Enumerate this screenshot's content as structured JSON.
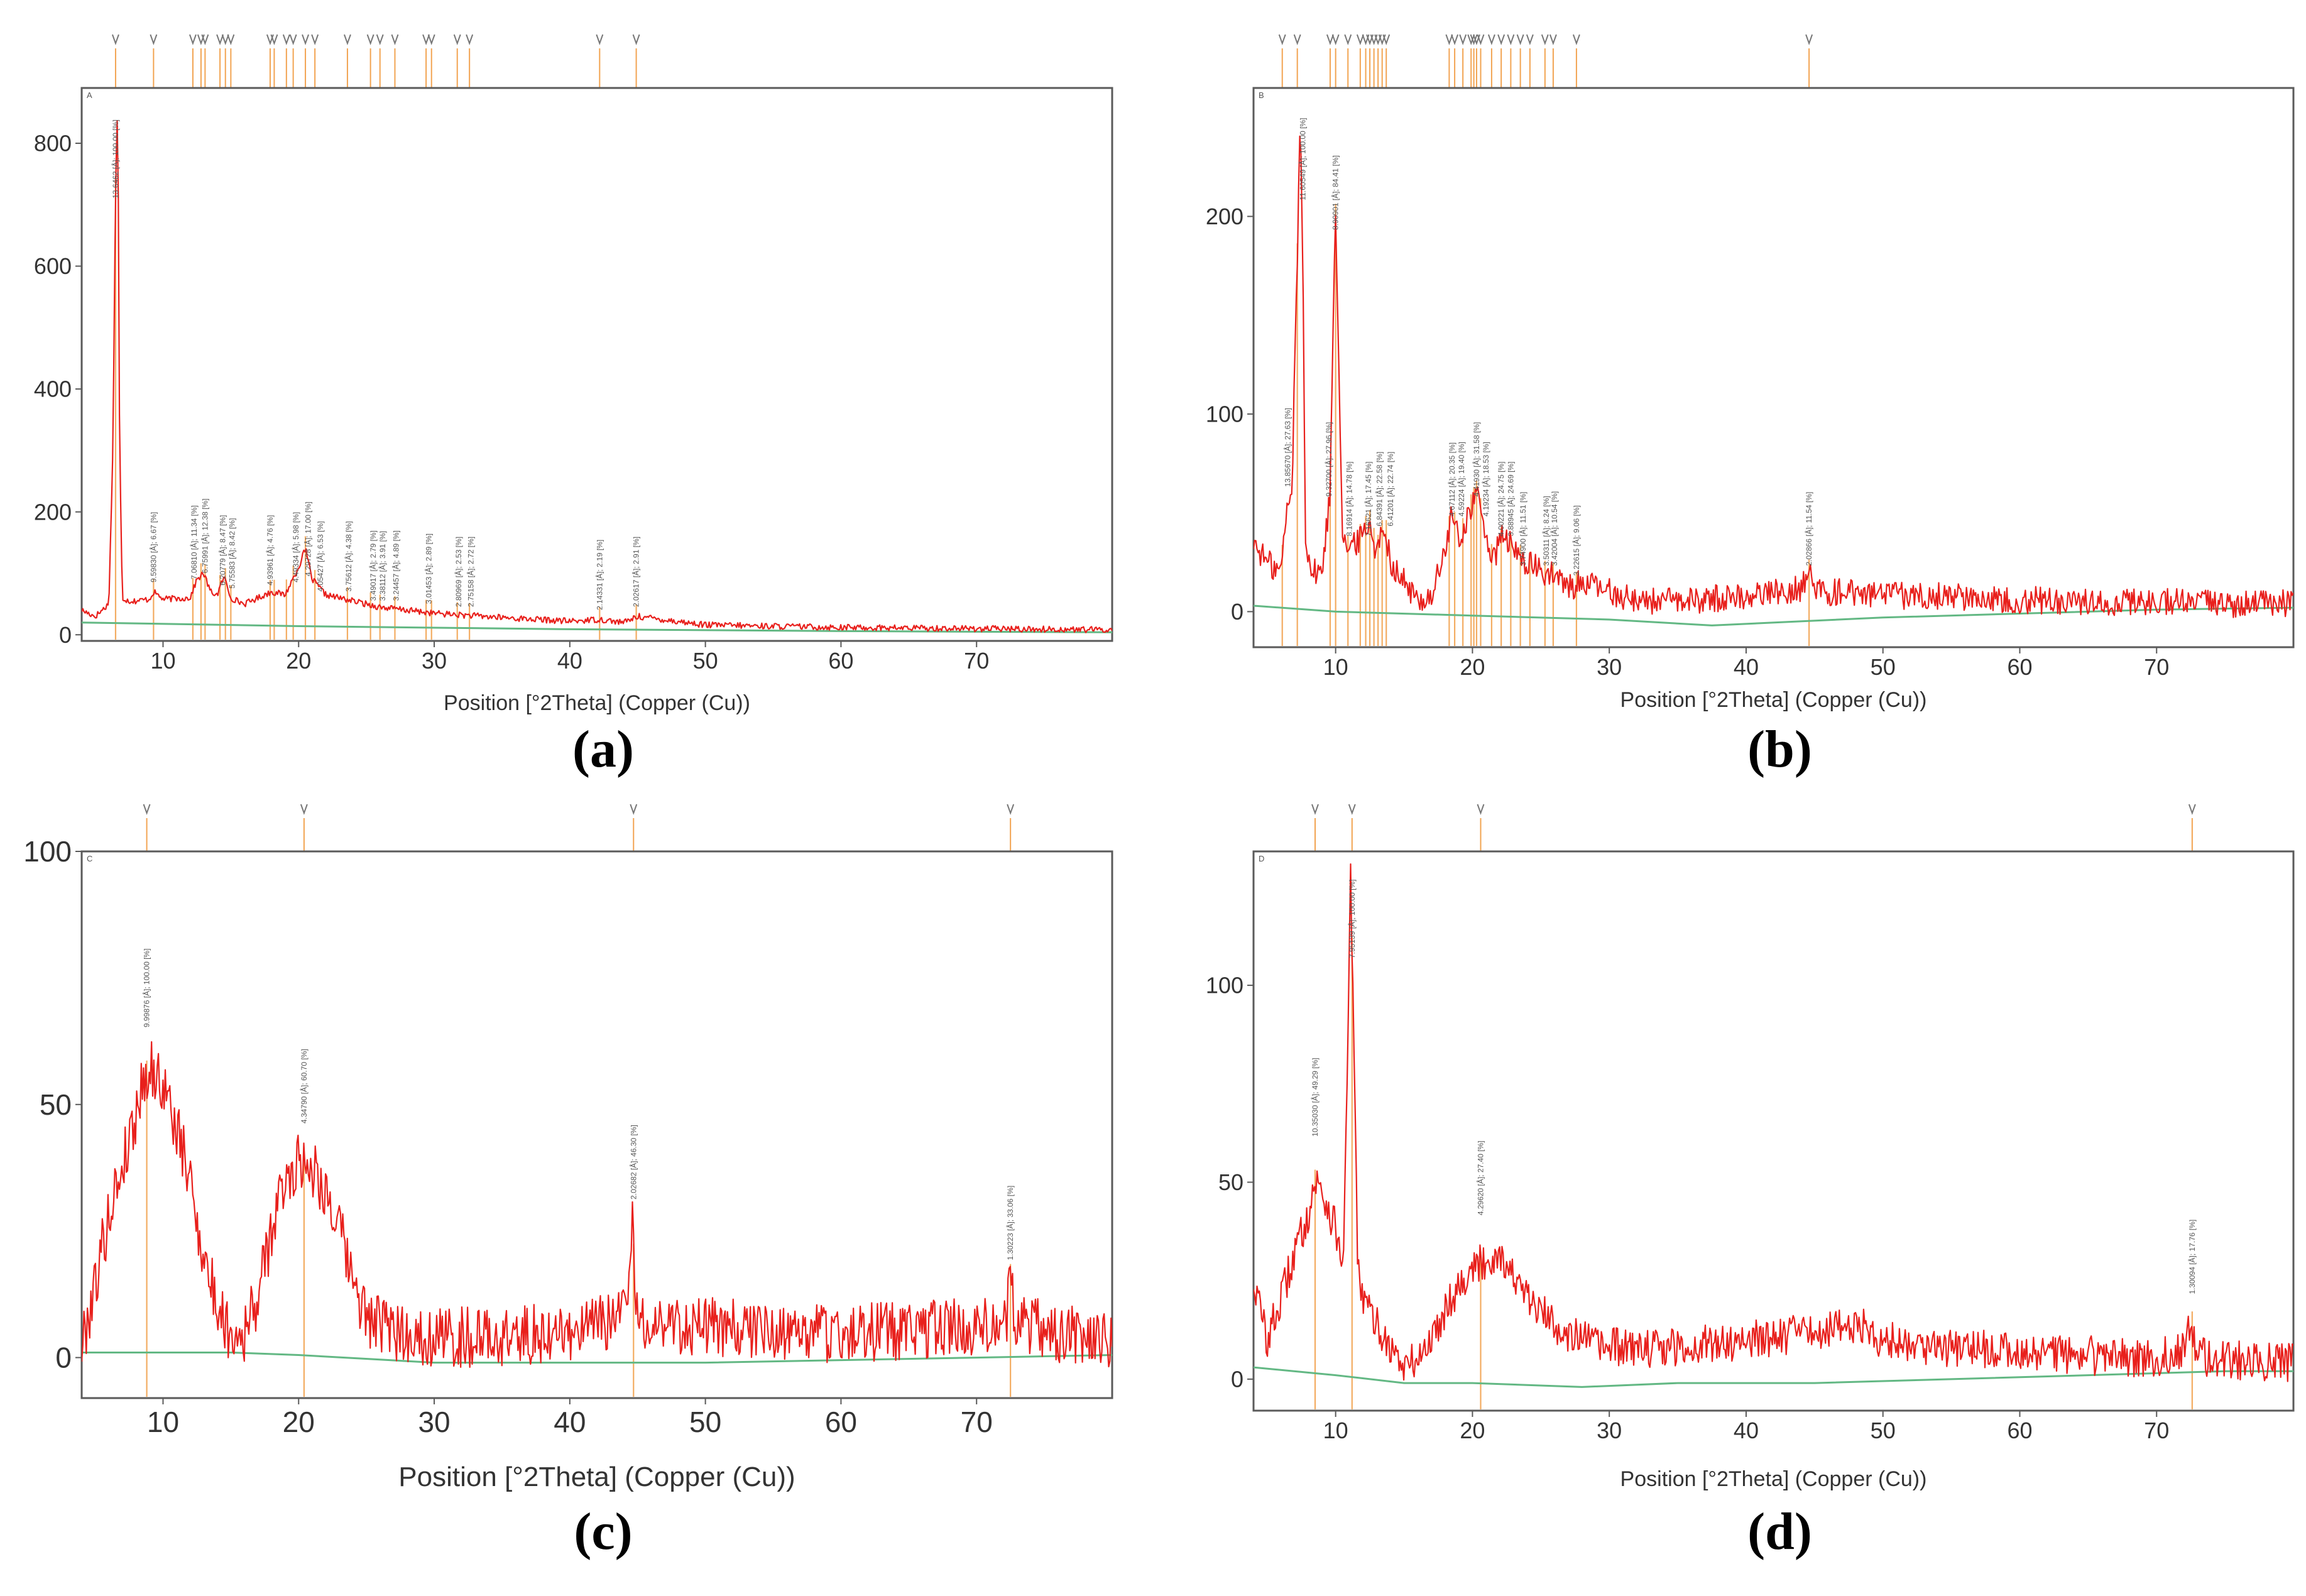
{
  "colors": {
    "pattern": "#e8201c",
    "background_line": "#63b884",
    "peak_marker": "#f2a452",
    "frame": "#5a5a5a",
    "marker_glyph": "#777777"
  },
  "chart_data": [
    {
      "id": "a",
      "type": "line",
      "panel_label": "(a)",
      "letter": "A",
      "xlabel": "Position [°2Theta] (Copper (Cu))",
      "ylabel": "",
      "xlim": [
        4,
        80
      ],
      "ylim": [
        -10,
        890
      ],
      "xticks": [
        "10",
        "20",
        "30",
        "40",
        "50",
        "60",
        "70"
      ],
      "xtick_values": [
        10,
        20,
        30,
        40,
        50,
        60,
        70
      ],
      "yticks": [
        "0",
        "200",
        "400",
        "600",
        "800"
      ],
      "ytick_values": [
        0,
        200,
        400,
        600,
        800
      ],
      "noise": 5,
      "series": [
        {
          "name": "background",
          "x": [
            4,
            20,
            40,
            60,
            80
          ],
          "y": [
            20,
            14,
            9,
            6,
            4
          ]
        },
        {
          "name": "pattern",
          "x": [
            4,
            5,
            6,
            6.3,
            6.5,
            6.6,
            6.7,
            6.8,
            7.0,
            7.5,
            8,
            9,
            9.3,
            10,
            12,
            12.5,
            13,
            13.5,
            14.0,
            14.5,
            15.0,
            16,
            18,
            19,
            20,
            20.5,
            21.0,
            22,
            24,
            26,
            28,
            30,
            35,
            40,
            42.2,
            44,
            45.0,
            50,
            60,
            70,
            80
          ],
          "y": [
            40,
            30,
            50,
            300,
            720,
            860,
            720,
            300,
            60,
            55,
            55,
            58,
            70,
            58,
            60,
            90,
            100,
            70,
            65,
            95,
            60,
            50,
            70,
            65,
            110,
            140,
            90,
            65,
            55,
            45,
            40,
            35,
            28,
            22,
            25,
            20,
            30,
            16,
            12,
            10,
            8
          ]
        }
      ],
      "peak_positions": [
        6.5,
        9.3,
        12.2,
        12.8,
        13.1,
        14.2,
        14.6,
        15.0,
        17.9,
        18.2,
        19.1,
        19.6,
        20.5,
        21.2,
        23.6,
        25.3,
        26.0,
        27.1,
        29.4,
        29.8,
        31.7,
        32.6,
        42.2,
        44.9
      ],
      "annotations": [
        {
          "x": 6.5,
          "y": 700,
          "text": "13.6462 [Å]; 100.00 [%]"
        },
        {
          "x": 9.3,
          "y": 75,
          "text": "9.59830 [Å]; 6.67 [%]"
        },
        {
          "x": 12.3,
          "y": 80,
          "text": "7.06810 [Å]; 11.34 [%]"
        },
        {
          "x": 13.1,
          "y": 90,
          "text": "6.75991 [Å]; 12.38 [%]"
        },
        {
          "x": 14.4,
          "y": 70,
          "text": "6.20779 [Å]; 8.47 [%]"
        },
        {
          "x": 15.1,
          "y": 65,
          "text": "5.75583 [Å]; 8.42 [%]"
        },
        {
          "x": 17.9,
          "y": 70,
          "text": "4.93961 [Å]; 4.76 [%]"
        },
        {
          "x": 19.8,
          "y": 75,
          "text": "4.49334 [Å]; 5.98 [%]"
        },
        {
          "x": 20.7,
          "y": 85,
          "text": "4.29728 [Å]; 17.00 [%]"
        },
        {
          "x": 21.6,
          "y": 60,
          "text": "4.05427 [Å]; 6.53 [%]"
        },
        {
          "x": 23.7,
          "y": 60,
          "text": "3.75612 [Å]; 4.38 [%]"
        },
        {
          "x": 25.5,
          "y": 45,
          "text": "3.49017 [Å]; 2.79 [%]"
        },
        {
          "x": 26.2,
          "y": 45,
          "text": "3.38112 [Å]; 3.91 [%]"
        },
        {
          "x": 27.2,
          "y": 45,
          "text": "3.24457 [Å]; 4.89 [%]"
        },
        {
          "x": 29.6,
          "y": 40,
          "text": "3.01453 [Å]; 2.89 [%]"
        },
        {
          "x": 31.8,
          "y": 35,
          "text": "2.80969 [Å]; 2.53 [%]"
        },
        {
          "x": 32.7,
          "y": 35,
          "text": "2.75158 [Å]; 2.72 [%]"
        },
        {
          "x": 42.2,
          "y": 30,
          "text": "2.14331 [Å]; 2.19 [%]"
        },
        {
          "x": 44.9,
          "y": 35,
          "text": "2.02617 [Å]; 2.91 [%]"
        }
      ]
    },
    {
      "id": "b",
      "type": "line",
      "panel_label": "(b)",
      "letter": "B",
      "xlabel": "Position [°2Theta] (Copper (Cu))",
      "ylabel": "",
      "xlim": [
        4,
        80
      ],
      "ylim": [
        -18,
        265
      ],
      "xticks": [
        "10",
        "20",
        "30",
        "40",
        "50",
        "60",
        "70"
      ],
      "xtick_values": [
        10,
        20,
        30,
        40,
        50,
        60,
        70
      ],
      "yticks": [
        "0",
        "100",
        "200"
      ],
      "ytick_values": [
        0,
        100,
        200
      ],
      "noise": 7,
      "series": [
        {
          "name": "background",
          "x": [
            4,
            10,
            20,
            30,
            37.5,
            50,
            60,
            70,
            80
          ],
          "y": [
            3,
            0,
            -2,
            -4,
            -7,
            -3,
            -1,
            1,
            2
          ]
        },
        {
          "name": "pattern",
          "x": [
            4,
            5,
            6,
            6.4,
            6.8,
            7.2,
            7.4,
            7.6,
            7.8,
            8.2,
            9,
            9.6,
            9.9,
            10.0,
            10.2,
            10.5,
            11,
            12,
            12.5,
            13,
            13.6,
            14,
            15,
            16,
            17,
            18,
            18.5,
            19,
            19.5,
            20.0,
            20.3,
            20.8,
            21.5,
            22.3,
            23,
            24,
            25,
            26,
            27,
            28,
            30,
            32,
            35,
            38,
            40,
            42,
            44,
            44.6,
            45.2,
            48,
            50,
            55,
            60,
            65,
            70,
            75,
            80
          ],
          "y": [
            35,
            25,
            20,
            50,
            60,
            180,
            250,
            180,
            40,
            20,
            20,
            60,
            180,
            200,
            140,
            40,
            30,
            40,
            45,
            30,
            45,
            25,
            15,
            5,
            8,
            30,
            50,
            35,
            45,
            55,
            60,
            45,
            25,
            40,
            30,
            25,
            20,
            18,
            12,
            15,
            10,
            6,
            5,
            7,
            8,
            10,
            12,
            20,
            10,
            10,
            8,
            8,
            6,
            5,
            5,
            4,
            4
          ]
        }
      ],
      "peak_positions": [
        6.1,
        7.2,
        9.6,
        10.0,
        10.9,
        11.8,
        12.2,
        12.5,
        12.8,
        13.1,
        13.4,
        13.7,
        18.3,
        18.7,
        19.3,
        19.9,
        20.1,
        20.3,
        20.6,
        21.4,
        22.1,
        22.8,
        23.5,
        24.2,
        25.3,
        25.9,
        27.6,
        44.6
      ],
      "annotations": [
        {
          "x": 6.5,
          "y": 60,
          "text": "13.85670 [Å]; 27.63 [%]"
        },
        {
          "x": 7.6,
          "y": 205,
          "text": "11.60549 [Å]; 100.00 [%]"
        },
        {
          "x": 9.5,
          "y": 55,
          "text": "9.32700 [Å]; 27.96 [%]"
        },
        {
          "x": 10.0,
          "y": 190,
          "text": "8.90901 [Å]; 84.41 [%]"
        },
        {
          "x": 11.0,
          "y": 35,
          "text": "8.16914 [Å]; 14.78 [%]"
        },
        {
          "x": 12.4,
          "y": 35,
          "text": "7.16621 [Å]; 17.45 [%]"
        },
        {
          "x": 13.2,
          "y": 40,
          "text": "6.84391 [Å]; 22.58 [%]"
        },
        {
          "x": 14.0,
          "y": 40,
          "text": "6.41201 [Å]; 22.74 [%]"
        },
        {
          "x": 18.5,
          "y": 45,
          "text": "4.67112 [Å]; 20.35 [%]"
        },
        {
          "x": 19.2,
          "y": 45,
          "text": "4.59224 [Å]; 19.40 [%]"
        },
        {
          "x": 20.3,
          "y": 55,
          "text": "4.41930 [Å]; 31.58 [%]"
        },
        {
          "x": 21.0,
          "y": 45,
          "text": "4.19234 [Å]; 18.53 [%]"
        },
        {
          "x": 22.1,
          "y": 35,
          "text": "4.00221 [Å]; 24.75 [%]"
        },
        {
          "x": 22.8,
          "y": 35,
          "text": "3.88945 [Å]; 24.69 [%]"
        },
        {
          "x": 23.7,
          "y": 20,
          "text": "3.74900 [Å]; 11.51 [%]"
        },
        {
          "x": 25.4,
          "y": 20,
          "text": "3.50311 [Å]; 8.24 [%]"
        },
        {
          "x": 26.0,
          "y": 20,
          "text": "3.42004 [Å]; 10.54 [%]"
        },
        {
          "x": 27.6,
          "y": 15,
          "text": "3.22615 [Å]; 9.06 [%]"
        },
        {
          "x": 44.6,
          "y": 20,
          "text": "2.02866 [Å]; 11.54 [%]"
        }
      ]
    },
    {
      "id": "c",
      "type": "line",
      "panel_label": "(c)",
      "letter": "C",
      "xlabel": "Position [°2Theta] (Copper (Cu))",
      "ylabel": "",
      "xlim": [
        4,
        80
      ],
      "ylim": [
        -8,
        100
      ],
      "xticks": [
        "10",
        "20",
        "30",
        "40",
        "50",
        "60",
        "70"
      ],
      "xtick_values": [
        10,
        20,
        30,
        40,
        50,
        60,
        70
      ],
      "yticks": [
        "0",
        "50",
        "100"
      ],
      "ytick_values": [
        0,
        50,
        100
      ],
      "noise": 6,
      "series": [
        {
          "name": "background",
          "x": [
            4,
            10,
            15,
            20,
            30,
            40,
            50,
            60,
            70,
            80
          ],
          "y": [
            1,
            1,
            1,
            0.5,
            -1,
            -1,
            -1,
            -0.5,
            0,
            0.5
          ]
        },
        {
          "name": "pattern",
          "x": [
            4,
            5,
            6,
            7,
            8,
            8.5,
            9,
            10,
            11,
            12,
            13,
            14,
            15,
            16,
            17,
            18,
            19,
            20,
            21,
            22,
            23,
            24,
            25,
            27,
            30,
            35,
            40,
            43,
            44.3,
            44.6,
            44.9,
            46,
            50,
            55,
            60,
            65,
            70,
            72.2,
            72.5,
            72.8,
            75,
            80
          ],
          "y": [
            2,
            15,
            28,
            38,
            48,
            55,
            57,
            54,
            45,
            35,
            20,
            10,
            5,
            5,
            12,
            25,
            35,
            39,
            38,
            33,
            25,
            15,
            8,
            5,
            4,
            4,
            5,
            7,
            12,
            26,
            8,
            7,
            6,
            5,
            5,
            5,
            6,
            8,
            16,
            8,
            5,
            3
          ]
        }
      ],
      "peak_positions": [
        8.8,
        20.4,
        44.7,
        72.5
      ],
      "annotations": [
        {
          "x": 8.8,
          "y": 64,
          "text": "9.99876 [Å]; 100.00 [%]"
        },
        {
          "x": 20.4,
          "y": 45,
          "text": "4.34790 [Å]; 60.70 [%]"
        },
        {
          "x": 44.7,
          "y": 30,
          "text": "2.02682 [Å]; 46.30 [%]"
        },
        {
          "x": 72.5,
          "y": 18,
          "text": "1.30223 [Å]; 33.06 [%]"
        }
      ]
    },
    {
      "id": "d",
      "type": "line",
      "panel_label": "(d)",
      "letter": "D",
      "xlabel": "Position [°2Theta] (Copper (Cu))",
      "ylabel": "",
      "xlim": [
        4,
        80
      ],
      "ylim": [
        -8,
        134
      ],
      "xticks": [
        "10",
        "20",
        "30",
        "40",
        "50",
        "60",
        "70"
      ],
      "xtick_values": [
        10,
        20,
        30,
        40,
        50,
        60,
        70
      ],
      "yticks": [
        "0",
        "50",
        "100"
      ],
      "ytick_values": [
        0,
        50,
        100
      ],
      "noise": 5,
      "series": [
        {
          "name": "background",
          "x": [
            4,
            10,
            15,
            20,
            28,
            35,
            45,
            55,
            65,
            75,
            80
          ],
          "y": [
            3,
            1,
            -1,
            -1,
            -2,
            -1,
            -1,
            0,
            1,
            2,
            2
          ]
        },
        {
          "name": "pattern",
          "x": [
            4,
            5,
            6,
            7,
            8,
            8.5,
            9,
            10,
            10.6,
            10.9,
            11.1,
            11.3,
            11.6,
            12,
            13,
            14,
            15,
            16,
            17,
            18,
            19,
            20,
            21,
            22,
            23,
            24,
            26,
            28,
            30,
            35,
            40,
            45,
            48,
            50,
            55,
            60,
            65,
            70,
            72.2,
            72.5,
            72.8,
            75,
            80
          ],
          "y": [
            25,
            10,
            20,
            32,
            42,
            50,
            48,
            38,
            30,
            90,
            128,
            90,
            30,
            20,
            14,
            8,
            3,
            5,
            10,
            18,
            24,
            28,
            30,
            32,
            26,
            20,
            14,
            10,
            8,
            8,
            10,
            12,
            14,
            10,
            8,
            7,
            6,
            5,
            8,
            18,
            6,
            5,
            4
          ]
        }
      ],
      "peak_positions": [
        8.5,
        11.2,
        20.6,
        72.6
      ],
      "annotations": [
        {
          "x": 8.5,
          "y": 60,
          "text": "10.35030 [Å]; 49.29 [%]"
        },
        {
          "x": 11.2,
          "y": 118,
          "text": "7.95139 [Å]; 100.00 [%]"
        },
        {
          "x": 20.6,
          "y": 40,
          "text": "4.29620 [Å]; 27.40 [%]"
        },
        {
          "x": 72.6,
          "y": 20,
          "text": "1.30094 [Å]; 17.76 [%]"
        }
      ]
    }
  ]
}
